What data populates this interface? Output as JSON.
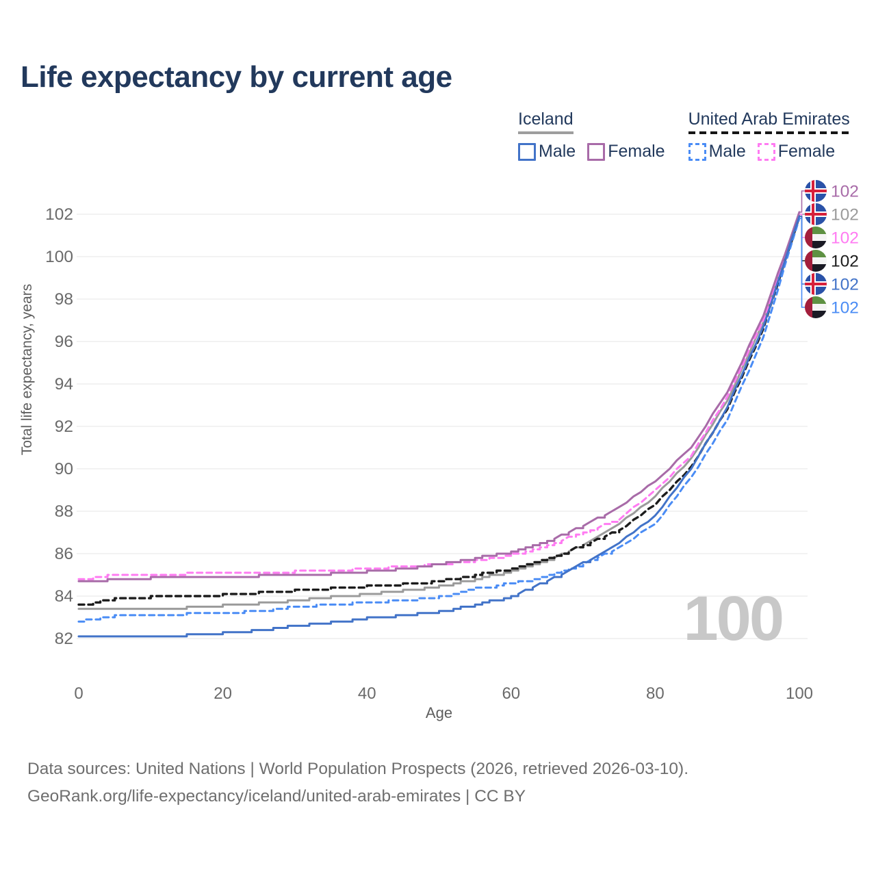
{
  "title": "Life expectancy by current age",
  "legend": {
    "groups": [
      {
        "id": "iceland",
        "label": "Iceland",
        "line_style": "solid",
        "items": [
          {
            "series": "iceland_male",
            "label": "Male"
          },
          {
            "series": "iceland_female",
            "label": "Female"
          }
        ]
      },
      {
        "id": "uae",
        "label": "United Arab Emirates",
        "line_style": "dashed",
        "items": [
          {
            "series": "uae_male",
            "label": "Male"
          },
          {
            "series": "uae_female",
            "label": "Female"
          }
        ]
      }
    ]
  },
  "watermark": "100",
  "footer": {
    "line1": "Data sources: United Nations | World Population Prospects (2026, retrieved 2026-03-10).",
    "line2": "GeoRank.org/life-expectancy/iceland/united-arab-emirates | CC BY"
  },
  "colors": {
    "iceland_male": "#4273C8",
    "uae_male": "#4A8CF5",
    "iceland_both": "#9B9B9B",
    "uae_both": "#1C1C1C",
    "iceland_female": "#A86BA8",
    "uae_female": "#FF7BF2",
    "grid": "#EAEAEA",
    "tick_text": "#6A6A6A",
    "axis_title": "#5E5E5E",
    "title_text": "#22395C",
    "watermark": "#C8C8C8",
    "flag_iceland": {
      "bg": "#2A52A8",
      "cross_outline": "#FFFFFF",
      "cross": "#D6203B"
    },
    "flag_uae": {
      "red": "#A31E3C",
      "green": "#5E9142",
      "white": "#F5F5F5",
      "black": "#1A1A24"
    }
  },
  "chart_data": {
    "type": "line",
    "title": "Life expectancy by current age",
    "xlabel": "Age",
    "ylabel": "Total life expectancy, years",
    "x_ticks": [
      0,
      20,
      40,
      60,
      80,
      100
    ],
    "y_ticks": [
      82,
      84,
      86,
      88,
      90,
      92,
      94,
      96,
      98,
      100,
      102
    ],
    "xlim": [
      0,
      100
    ],
    "ylim": [
      81.6,
      103.2
    ],
    "grid": "horizontal-only",
    "legend_position": "top-right",
    "ages": [
      0,
      5,
      10,
      15,
      20,
      25,
      30,
      35,
      40,
      45,
      50,
      55,
      60,
      65,
      70,
      75,
      80,
      85,
      90,
      95,
      100
    ],
    "series": [
      {
        "id": "iceland_female",
        "name": "Iceland Female",
        "country": "iceland",
        "sex": "female",
        "dash": false,
        "end_label": "102",
        "values": [
          84.65,
          84.8,
          84.85,
          84.85,
          84.9,
          84.95,
          85.0,
          85.05,
          85.15,
          85.3,
          85.5,
          85.8,
          86.1,
          86.6,
          87.3,
          88.2,
          89.4,
          91.0,
          93.6,
          97.2,
          102.1
        ]
      },
      {
        "id": "iceland_both",
        "name": "Iceland Both sexes",
        "country": "iceland",
        "sex": "both",
        "dash": false,
        "end_label": "102",
        "values": [
          83.35,
          83.4,
          83.4,
          83.45,
          83.55,
          83.65,
          83.8,
          83.95,
          84.1,
          84.25,
          84.45,
          84.8,
          85.2,
          85.7,
          86.4,
          87.4,
          88.7,
          90.5,
          93.2,
          96.9,
          102.0
        ]
      },
      {
        "id": "uae_female",
        "name": "United Arab Emirates Female",
        "country": "uae",
        "sex": "female",
        "dash": true,
        "end_label": "102",
        "values": [
          84.8,
          85.0,
          85.0,
          85.05,
          85.05,
          85.1,
          85.15,
          85.2,
          85.3,
          85.4,
          85.5,
          85.65,
          85.95,
          86.4,
          87.0,
          87.6,
          89.0,
          90.6,
          93.4,
          97.0,
          102.0
        ]
      },
      {
        "id": "uae_both",
        "name": "United Arab Emirates Both sexes",
        "country": "uae",
        "sex": "both",
        "dash": true,
        "end_label": "102",
        "values": [
          83.55,
          83.9,
          83.95,
          84.0,
          84.05,
          84.15,
          84.25,
          84.35,
          84.45,
          84.55,
          84.7,
          85.0,
          85.3,
          85.75,
          86.4,
          87.1,
          88.3,
          90.1,
          92.8,
          96.6,
          101.9
        ]
      },
      {
        "id": "iceland_male",
        "name": "Iceland Male",
        "country": "iceland",
        "sex": "male",
        "dash": false,
        "end_label": "102",
        "values": [
          82.05,
          82.1,
          82.1,
          82.15,
          82.25,
          82.4,
          82.6,
          82.75,
          82.95,
          83.1,
          83.25,
          83.6,
          84.0,
          84.7,
          85.55,
          86.5,
          87.8,
          90.0,
          92.9,
          96.7,
          101.9
        ]
      },
      {
        "id": "uae_male",
        "name": "United Arab Emirates Male",
        "country": "uae",
        "sex": "male",
        "dash": true,
        "end_label": "102",
        "values": [
          82.8,
          83.05,
          83.1,
          83.15,
          83.2,
          83.3,
          83.5,
          83.6,
          83.7,
          83.8,
          83.95,
          84.35,
          84.6,
          84.95,
          85.5,
          86.3,
          87.4,
          89.6,
          92.3,
          96.2,
          101.8
        ]
      }
    ]
  }
}
